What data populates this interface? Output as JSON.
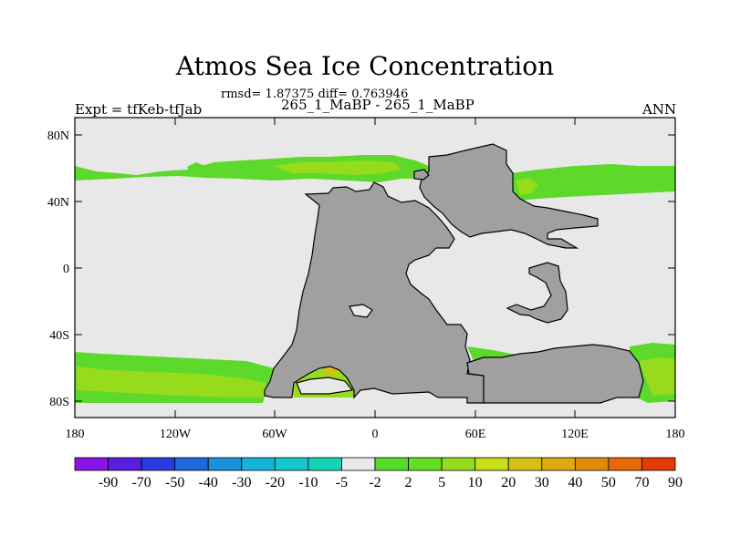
{
  "title": "Atmos Sea Ice Concentration",
  "stats_line": "rmsd= 1.87375 diff= 0.763946",
  "experiment_pair": "265_1_MaBP - 265_1_MaBP",
  "left_label": "Expt = tfKeb-tfJab",
  "right_label": "ANN",
  "lat_labels": [
    "80N",
    "40N",
    "0",
    "40S",
    "80S"
  ],
  "lon_labels": [
    "180",
    "120W",
    "60W",
    "0",
    "60E",
    "120E",
    "180"
  ],
  "colorbar": {
    "labels": [
      "-90",
      "-70",
      "-50",
      "-40",
      "-30",
      "-20",
      "-10",
      "-5",
      "-2",
      "2",
      "5",
      "10",
      "20",
      "30",
      "40",
      "50",
      "70",
      "90"
    ],
    "colors": [
      "#8a14e6",
      "#5a1ee0",
      "#2a3ae0",
      "#1e6adc",
      "#1a92d8",
      "#18b4d8",
      "#14c8cc",
      "#16d2b4",
      "#e8e8e8",
      "#58dc2a",
      "#64de22",
      "#96dc1c",
      "#c8de16",
      "#d6c014",
      "#deaa10",
      "#e28a0c",
      "#e46a08",
      "#e43c06"
    ]
  },
  "map_colors": {
    "ocean": "#e8e8e8",
    "land": "#a0a0a0",
    "ice_green": "#5cd92a",
    "ice_lime": "#96dc1c",
    "ice_yellow": "#d6c014"
  }
}
